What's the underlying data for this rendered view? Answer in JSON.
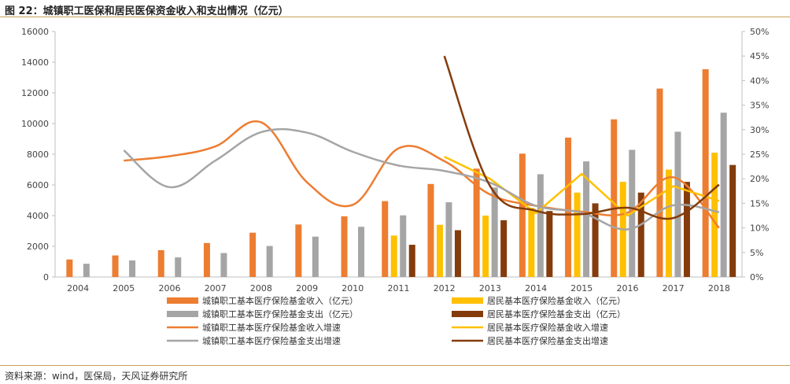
{
  "page": {
    "title": "图 22：城镇职工医保和居民医保资金收入和支出情况（亿元）",
    "source": "资料来源：wind，医保局，天风证券研究所"
  },
  "chart_data": {
    "type": "bar",
    "categories": [
      "2004",
      "2005",
      "2006",
      "2007",
      "2008",
      "2009",
      "2010",
      "2011",
      "2012",
      "2013",
      "2014",
      "2015",
      "2016",
      "2017",
      "2018"
    ],
    "y_left": {
      "min": 0,
      "max": 16000,
      "ticks": [
        "0",
        "2000",
        "4000",
        "6000",
        "8000",
        "10000",
        "12000",
        "14000",
        "16000"
      ]
    },
    "y_right": {
      "min": 0,
      "max": 0.5,
      "ticks": [
        "0%",
        "5%",
        "10%",
        "15%",
        "20%",
        "25%",
        "30%",
        "35%",
        "40%",
        "45%",
        "50%"
      ]
    },
    "bar_series": [
      {
        "name": "城镇职工基本医疗保险基金收入（亿元）",
        "color": "#ED7D31",
        "values": [
          1141,
          1405,
          1747,
          2214,
          2886,
          3420,
          3955,
          4945,
          6062,
          7062,
          8038,
          9084,
          10274,
          12278,
          13538
        ]
      },
      {
        "name": "城镇职工基本医疗保险基金支出（亿元）",
        "color": "#A5A5A5",
        "values": [
          862,
          1079,
          1277,
          1562,
          2020,
          2630,
          3272,
          4018,
          4868,
          5830,
          6697,
          7532,
          8287,
          9467,
          10707
        ]
      },
      {
        "name": "居民基本医疗保险基金收入（亿元）",
        "color": "#FFC000",
        "values": [
          null,
          null,
          null,
          null,
          null,
          null,
          null,
          2700,
          3400,
          4000,
          4500,
          5500,
          6200,
          7000,
          8100
        ]
      },
      {
        "name": "居民基本医疗保险基金支出（亿元）",
        "color": "#843C0C",
        "values": [
          null,
          null,
          null,
          null,
          null,
          null,
          null,
          2100,
          3050,
          3700,
          4300,
          4800,
          5500,
          6200,
          7300
        ]
      }
    ],
    "line_series": [
      {
        "name": "城镇职工基本医疗保险基金收入增速",
        "color": "#ED7D31",
        "values": [
          null,
          0.237,
          0.246,
          0.266,
          0.315,
          0.193,
          0.147,
          0.262,
          0.236,
          0.168,
          0.145,
          0.133,
          0.131,
          0.203,
          0.1
        ]
      },
      {
        "name": "居民基本医疗保险基金收入增速",
        "color": "#FFC000",
        "values": [
          null,
          null,
          null,
          null,
          null,
          null,
          null,
          null,
          0.245,
          0.2,
          0.13,
          0.21,
          0.125,
          0.185,
          0.155
        ]
      },
      {
        "name": "城镇职工基本医疗保险基金支出增速",
        "color": "#A5A5A5",
        "values": [
          null,
          0.258,
          0.183,
          0.237,
          0.295,
          0.294,
          0.255,
          0.227,
          0.216,
          0.192,
          0.145,
          0.131,
          0.097,
          0.146,
          0.132
        ]
      },
      {
        "name": "居民基本医疗保险基金支出增速",
        "color": "#843C0C",
        "values": [
          null,
          null,
          null,
          null,
          null,
          null,
          null,
          null,
          0.45,
          0.185,
          0.135,
          0.128,
          0.141,
          0.12,
          0.188
        ]
      }
    ],
    "legend": [
      {
        "label": "城镇职工基本医疗保险基金收入（亿元）",
        "kind": "bar",
        "color": "#ED7D31"
      },
      {
        "label": "居民基本医疗保险基金收入（亿元）",
        "kind": "bar",
        "color": "#FFC000"
      },
      {
        "label": "城镇职工基本医疗保险基金支出（亿元）",
        "kind": "bar",
        "color": "#A5A5A5"
      },
      {
        "label": "居民基本医疗保险基金支出（亿元）",
        "kind": "bar",
        "color": "#843C0C"
      },
      {
        "label": "城镇职工基本医疗保险基金收入增速",
        "kind": "line",
        "color": "#ED7D31"
      },
      {
        "label": "居民基本医疗保险基金收入增速",
        "kind": "line",
        "color": "#FFC000"
      },
      {
        "label": "城镇职工基本医疗保险基金支出增速",
        "kind": "line",
        "color": "#A5A5A5"
      },
      {
        "label": "居民基本医疗保险基金支出增速",
        "kind": "line",
        "color": "#843C0C"
      }
    ],
    "legend_placement": "bottom",
    "grid": false
  }
}
